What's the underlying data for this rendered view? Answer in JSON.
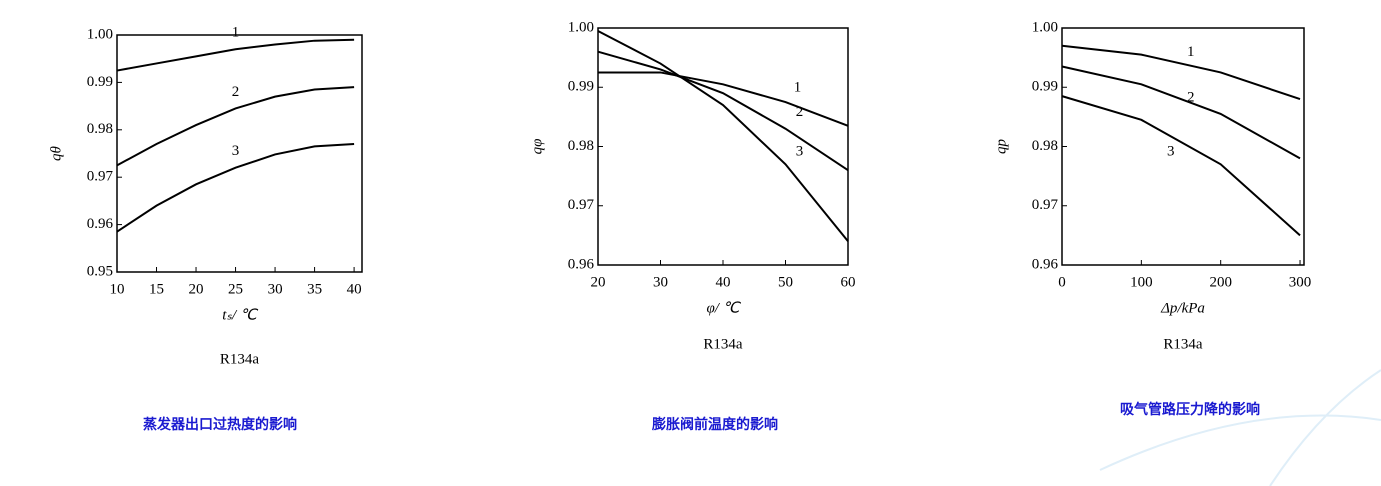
{
  "chart_data": [
    {
      "type": "line",
      "xlabel": "tₛ/ ℃",
      "ylabel": "qθ",
      "subtitle": "R134a",
      "caption": "蒸发器出口过热度的影响",
      "x": [
        10,
        15,
        20,
        25,
        30,
        35,
        40
      ],
      "xlim": [
        10,
        41
      ],
      "xticks": [
        10,
        15,
        20,
        25,
        30,
        35,
        40
      ],
      "ylim": [
        0.95,
        1.0
      ],
      "yticks": [
        0.95,
        0.96,
        0.97,
        0.98,
        0.99,
        {
          "value": 1,
          "label": "1.00"
        }
      ],
      "grid": false,
      "series": [
        {
          "name": "1",
          "color": "#000000",
          "values": [
            0.9925,
            0.994,
            0.9955,
            0.997,
            0.998,
            0.9988,
            0.999
          ]
        },
        {
          "name": "2",
          "color": "#000000",
          "values": [
            0.9725,
            0.977,
            0.981,
            0.9845,
            0.987,
            0.9885,
            0.989
          ]
        },
        {
          "name": "3",
          "color": "#000000",
          "values": [
            0.9585,
            0.964,
            0.9685,
            0.972,
            0.9748,
            0.9765,
            0.977
          ]
        }
      ]
    },
    {
      "type": "line",
      "xlabel": "φ/ ℃",
      "ylabel": "qφ",
      "subtitle": "R134a",
      "caption": "膨胀阀前温度的影响",
      "x": [
        20,
        30,
        40,
        50,
        60
      ],
      "xlim": [
        20,
        60
      ],
      "xticks": [
        20,
        30,
        40,
        50,
        60
      ],
      "ylim": [
        0.96,
        1.0
      ],
      "yticks": [
        0.96,
        0.97,
        0.98,
        0.99,
        {
          "value": 1,
          "label": "1.00"
        }
      ],
      "grid": false,
      "series": [
        {
          "name": "1",
          "color": "#000000",
          "values": [
            0.9925,
            0.9925,
            0.9905,
            0.9875,
            0.9835
          ]
        },
        {
          "name": "2",
          "color": "#000000",
          "values": [
            0.996,
            0.993,
            0.989,
            0.983,
            0.976
          ]
        },
        {
          "name": "3",
          "color": "#000000",
          "values": [
            0.9995,
            0.994,
            0.987,
            0.977,
            0.964
          ]
        }
      ]
    },
    {
      "type": "line",
      "xlabel": "Δp/kPa",
      "ylabel": "qp",
      "subtitle": "R134a",
      "caption": "吸气管路压力降的影响",
      "x": [
        0,
        100,
        200,
        300
      ],
      "xlim": [
        0,
        305
      ],
      "xticks": [
        0,
        100,
        200,
        300
      ],
      "ylim": [
        0.96,
        1.0
      ],
      "yticks": [
        0.96,
        0.97,
        0.98,
        0.99,
        {
          "value": 1,
          "label": "1.00"
        }
      ],
      "grid": false,
      "series": [
        {
          "name": "1",
          "color": "#000000",
          "values": [
            0.997,
            0.9955,
            0.9925,
            0.988
          ]
        },
        {
          "name": "2",
          "color": "#000000",
          "values": [
            0.9935,
            0.9905,
            0.9855,
            0.978
          ]
        },
        {
          "name": "3",
          "color": "#000000",
          "values": [
            0.9885,
            0.9845,
            0.977,
            0.965
          ]
        }
      ]
    }
  ]
}
